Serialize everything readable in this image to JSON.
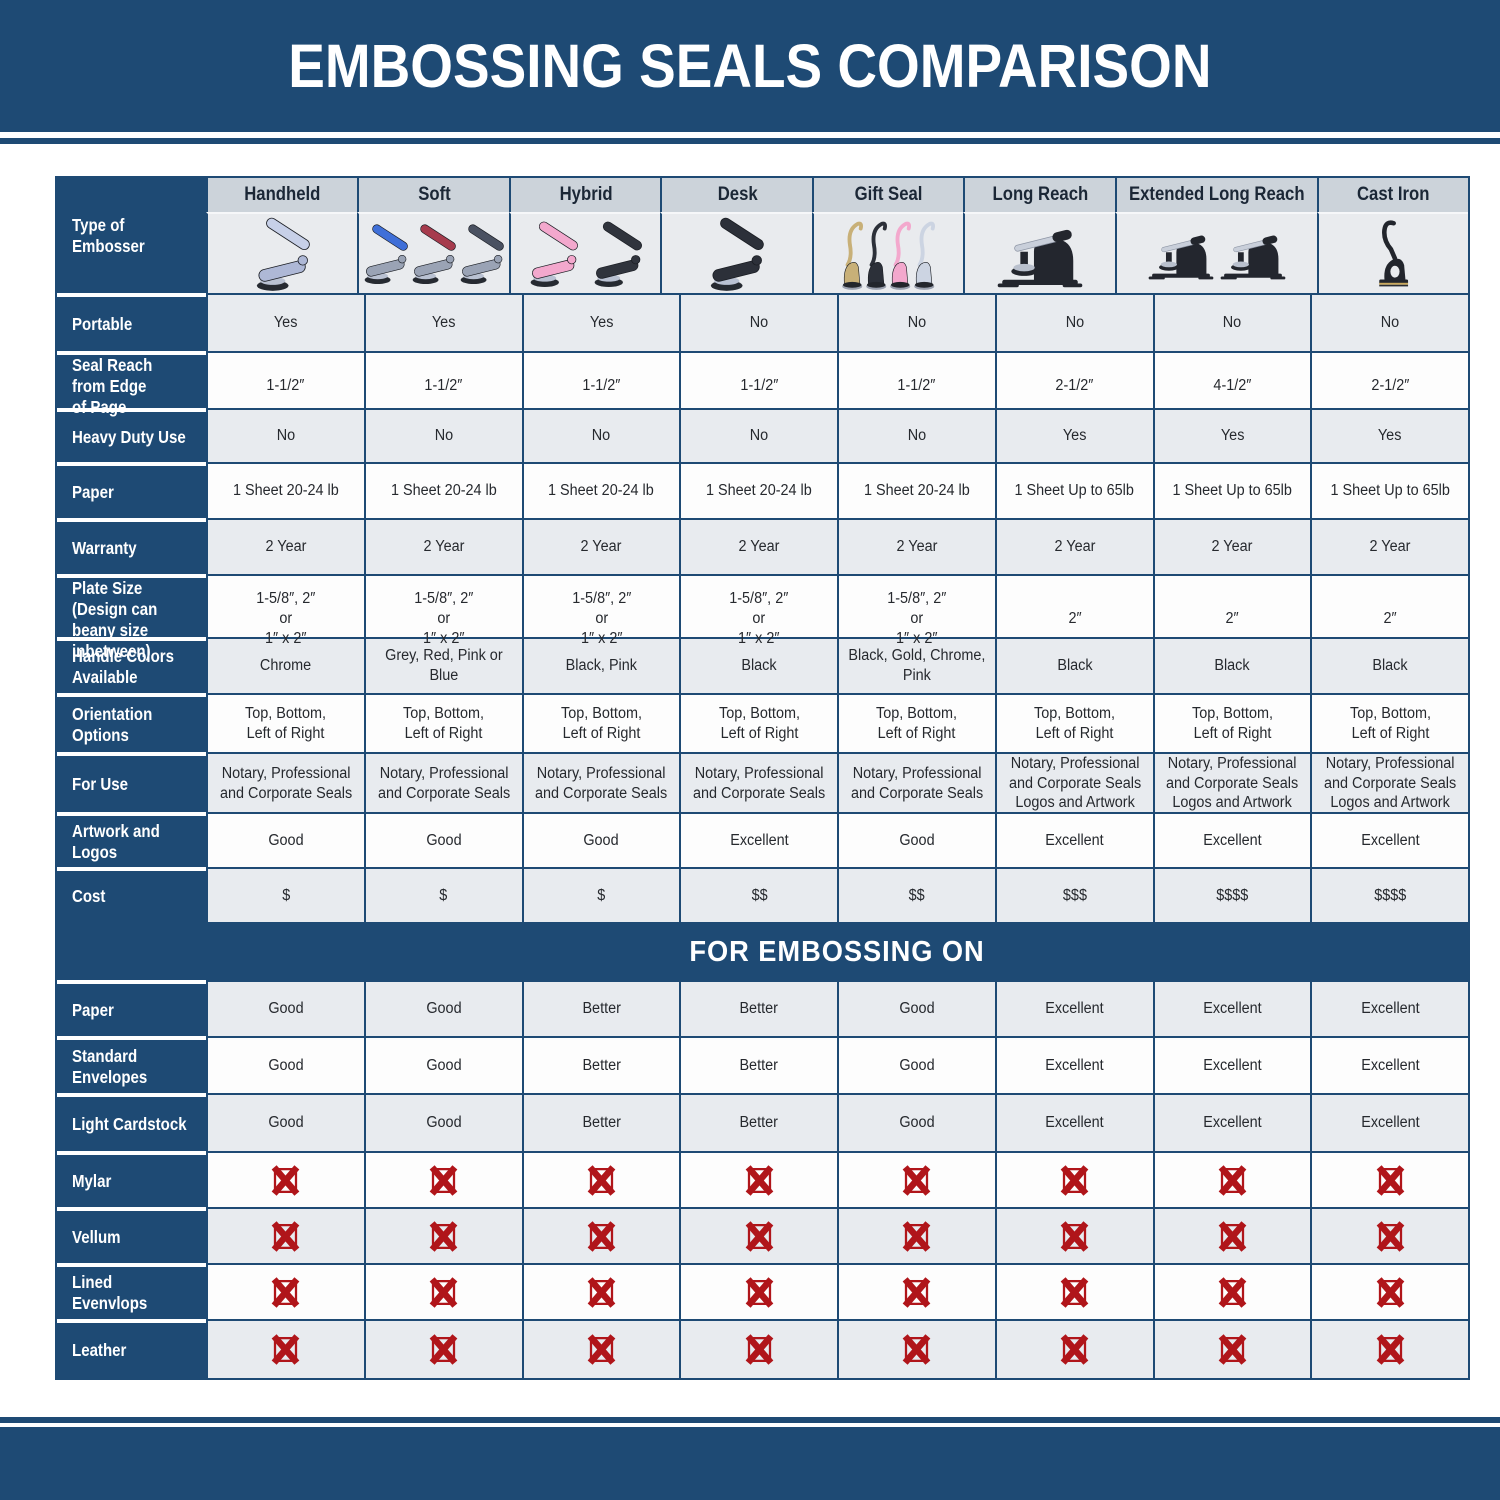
{
  "chart_data": {
    "type": "table",
    "title": "EMBOSSING SEALS COMPARISON",
    "corner_label": "Type of Embosser",
    "columns": [
      "Handheld",
      "Soft",
      "Hybrid",
      "Desk",
      "Gift Seal",
      "Long Reach",
      "Extended Long Reach",
      "Cast Iron"
    ],
    "rows": [
      {
        "label": "Portable",
        "values": [
          "Yes",
          "Yes",
          "Yes",
          "No",
          "No",
          "No",
          "No",
          "No"
        ]
      },
      {
        "label": "Seal Reach from Edge\nof Page",
        "values": [
          "1-1/2″",
          "1-1/2″",
          "1-1/2″",
          "1-1/2″",
          "1-1/2″",
          "2-1/2″",
          "4-1/2″",
          "2-1/2″"
        ]
      },
      {
        "label": "Heavy Duty Use",
        "values": [
          "No",
          "No",
          "No",
          "No",
          "No",
          "Yes",
          "Yes",
          "Yes"
        ]
      },
      {
        "label": "Paper",
        "values": [
          "1 Sheet 20-24 lb",
          "1 Sheet 20-24 lb",
          "1 Sheet 20-24 lb",
          "1 Sheet 20-24 lb",
          "1 Sheet 20-24 lb",
          "1 Sheet Up to 65lb",
          "1 Sheet Up to 65lb",
          "1 Sheet Up to 65lb"
        ]
      },
      {
        "label": "Warranty",
        "values": [
          "2 Year",
          "2 Year",
          "2 Year",
          "2 Year",
          "2 Year",
          "2 Year",
          "2 Year",
          "2 Year"
        ]
      },
      {
        "label": "Plate Size (Design can\nbeany size inbetween)",
        "values": [
          [
            "1-5/8″, 2″",
            "or",
            "1″ x 2″"
          ],
          [
            "1-5/8″, 2″",
            "or",
            "1″ x 2″"
          ],
          [
            "1-5/8″, 2″",
            "or",
            "1″ x 2″"
          ],
          [
            "1-5/8″, 2″",
            "or",
            "1″ x 2″"
          ],
          [
            "1-5/8″, 2″",
            "or",
            "1″ x 2″"
          ],
          "2″",
          "2″",
          "2″"
        ]
      },
      {
        "label": "Handle Colors Available",
        "values": [
          "Chrome",
          "Grey, Red, Pink or Blue",
          "Black, Pink",
          "Black",
          "Black, Gold, Chrome, Pink",
          "Black",
          "Black",
          "Black"
        ]
      },
      {
        "label": "Orientation Options",
        "values": [
          [
            "Top, Bottom,",
            "Left of Right"
          ],
          [
            "Top, Bottom,",
            "Left of Right"
          ],
          [
            "Top, Bottom,",
            "Left of Right"
          ],
          [
            "Top, Bottom,",
            "Left of Right"
          ],
          [
            "Top, Bottom,",
            "Left of Right"
          ],
          [
            "Top, Bottom,",
            "Left of Right"
          ],
          [
            "Top, Bottom,",
            "Left of Right"
          ],
          [
            "Top, Bottom,",
            "Left of Right"
          ]
        ]
      },
      {
        "label": "For Use",
        "values": [
          [
            "Notary, Professional",
            "and Corporate Seals"
          ],
          [
            "Notary, Professional",
            "and Corporate Seals"
          ],
          [
            "Notary, Professional",
            "and Corporate Seals"
          ],
          [
            "Notary, Professional",
            "and Corporate Seals"
          ],
          [
            "Notary, Professional",
            "and Corporate Seals"
          ],
          [
            "Notary, Professional",
            "and Corporate Seals",
            "Logos and Artwork"
          ],
          [
            "Notary, Professional",
            "and Corporate Seals",
            "Logos and Artwork"
          ],
          [
            "Notary, Professional",
            "and Corporate Seals",
            "Logos and Artwork"
          ]
        ]
      },
      {
        "label": "Artwork and Logos",
        "values": [
          "Good",
          "Good",
          "Good",
          "Excellent",
          "Good",
          "Excellent",
          "Excellent",
          "Excellent"
        ]
      },
      {
        "label": "Cost",
        "values": [
          "$",
          "$",
          "$",
          "$$",
          "$$",
          "$$$",
          "$$$$",
          "$$$$"
        ]
      }
    ],
    "section_title": "FOR EMBOSSING ON",
    "embossing_rows": [
      {
        "label": "Paper",
        "values": [
          "Good",
          "Good",
          "Better",
          "Better",
          "Good",
          "Excellent",
          "Excellent",
          "Excellent"
        ]
      },
      {
        "label": "Standard Envelopes",
        "values": [
          "Good",
          "Good",
          "Better",
          "Better",
          "Good",
          "Excellent",
          "Excellent",
          "Excellent"
        ]
      },
      {
        "label": "Light Cardstock",
        "values": [
          "Good",
          "Good",
          "Better",
          "Better",
          "Good",
          "Excellent",
          "Excellent",
          "Excellent"
        ]
      },
      {
        "label": "Mylar",
        "values": [
          "X",
          "X",
          "X",
          "X",
          "X",
          "X",
          "X",
          "X"
        ]
      },
      {
        "label": "Vellum",
        "values": [
          "X",
          "X",
          "X",
          "X",
          "X",
          "X",
          "X",
          "X"
        ]
      },
      {
        "label": "Lined Evenvlops",
        "values": [
          "X",
          "X",
          "X",
          "X",
          "X",
          "X",
          "X",
          "X"
        ]
      },
      {
        "label": "Leather",
        "values": [
          "X",
          "X",
          "X",
          "X",
          "X",
          "X",
          "X",
          "X"
        ]
      }
    ]
  },
  "embosser_images": [
    {
      "kind": "hand-press",
      "colors": [
        "#c7d0e8",
        "#aeb8d6"
      ]
    },
    {
      "kind": "hand-press-trio",
      "colors": [
        "#3f6fd8",
        "#a63b4d",
        "#4a5161"
      ]
    },
    {
      "kind": "hand-press-duo",
      "colors": [
        "#f3a8cd",
        "#30343d"
      ]
    },
    {
      "kind": "hand-press-black",
      "colors": [
        "#2c3039"
      ]
    },
    {
      "kind": "gift-seal-quartet",
      "colors": [
        "#c8b078",
        "#2c3039",
        "#f3a8cd",
        "#ccd4e2"
      ]
    },
    {
      "kind": "desk-machine",
      "colors": [
        "#23262e"
      ]
    },
    {
      "kind": "desk-machine-duo",
      "colors": [
        "#23262e",
        "#23262e"
      ]
    },
    {
      "kind": "cast-iron",
      "colors": [
        "#22252c"
      ]
    }
  ],
  "x_marker": "X",
  "colors": {
    "navy": "#1e4a74",
    "row_gray": "#e8ebef",
    "row_white": "#fdfdfd",
    "header_strip": "#ccd3da",
    "image_row_bg": "#e9ebee",
    "x_red": "#b0151a",
    "cell_text": "#26292e",
    "header_text": "#1b2736"
  }
}
